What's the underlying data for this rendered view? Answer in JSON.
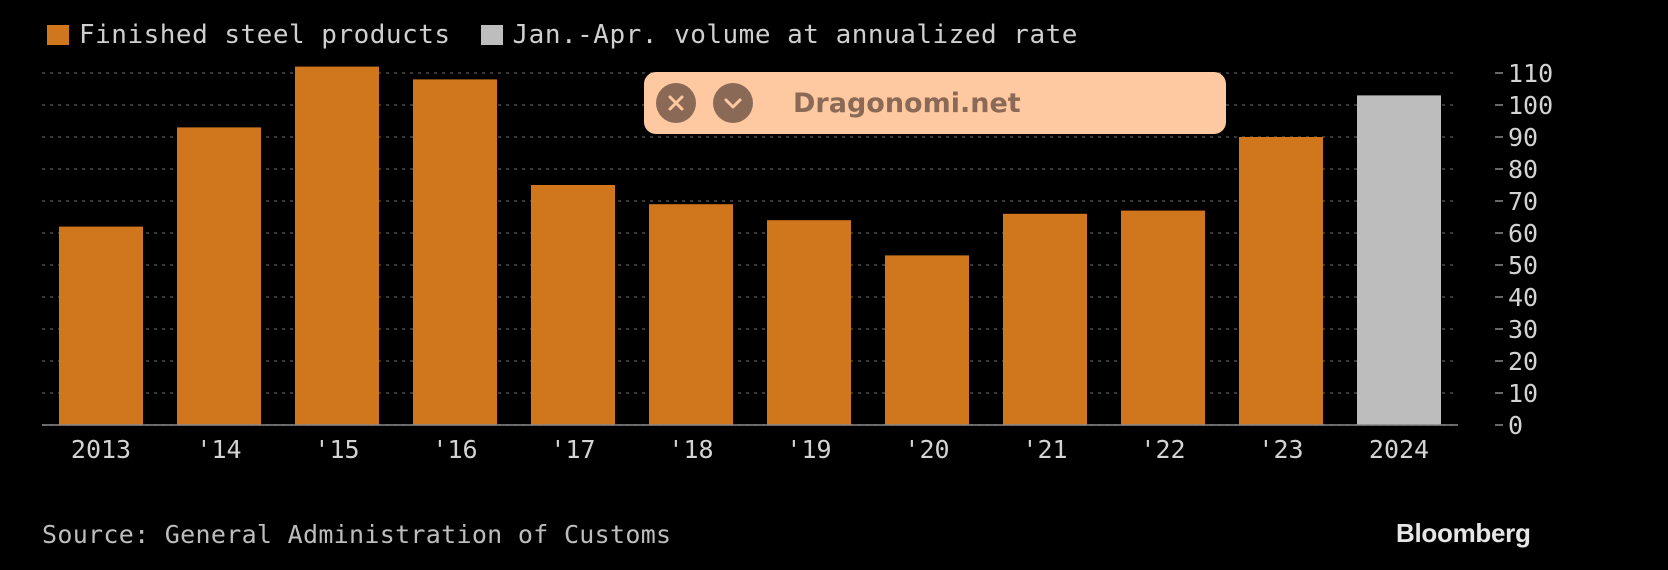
{
  "legend": [
    {
      "label": "Finished steel products",
      "color": "#d0771d"
    },
    {
      "label": "Jan.-Apr. volume at annualized rate",
      "color": "#bdbdbd"
    }
  ],
  "chart_data": {
    "type": "bar",
    "categories": [
      "2013",
      "'14",
      "'15",
      "'16",
      "'17",
      "'18",
      "'19",
      "'20",
      "'21",
      "'22",
      "'23",
      "2024"
    ],
    "series": [
      {
        "name": "Finished steel products",
        "values": [
          62,
          93,
          112,
          108,
          75,
          69,
          64,
          53,
          66,
          67,
          90,
          null
        ],
        "color": "#d0771d"
      },
      {
        "name": "Jan.-Apr. volume at annualized rate",
        "values": [
          null,
          null,
          null,
          null,
          null,
          null,
          null,
          null,
          null,
          null,
          null,
          103
        ],
        "color": "#bdbdbd"
      }
    ],
    "ylim": [
      0,
      110
    ],
    "yticks": [
      0,
      10,
      20,
      30,
      40,
      50,
      60,
      70,
      80,
      90,
      100,
      110
    ],
    "y_axis_side": "right",
    "grid": true,
    "legend_position": "top-left"
  },
  "footer": {
    "source": "Source: General Administration of Customs",
    "brand": "Bloomberg"
  },
  "overlay": {
    "label": "Dragonomi.net",
    "close_icon": "close-icon",
    "expand_icon": "chevron-down-icon",
    "background": "#fec9a0",
    "foreground": "#8a6a56"
  }
}
